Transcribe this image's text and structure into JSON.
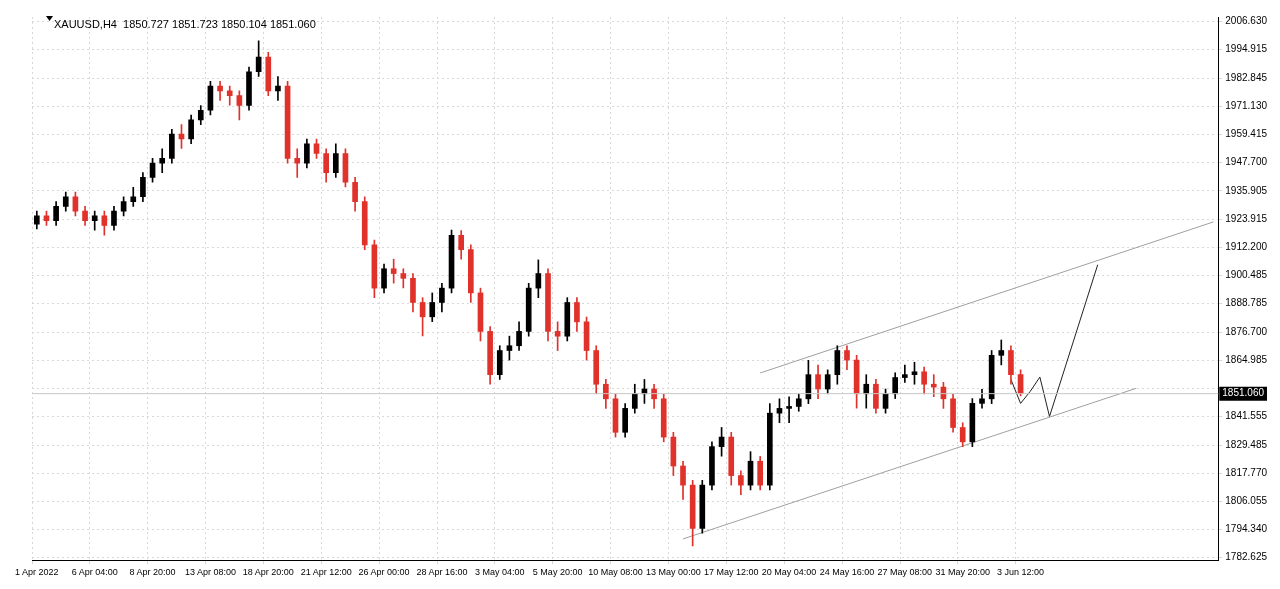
{
  "chart_data": {
    "type": "candlestick",
    "title": "XAUUSD,H4  1850.727 1851.723 1850.104 1851.060",
    "categories": [
      "1 Apr 2022",
      null,
      null,
      null,
      null,
      null,
      "6 Apr 04:00",
      null,
      null,
      null,
      null,
      null,
      "8 Apr 20:00",
      null,
      null,
      null,
      null,
      null,
      "13 Apr 08:00",
      null,
      null,
      null,
      null,
      null,
      "18 Apr 20:00",
      null,
      null,
      null,
      null,
      null,
      "21 Apr 12:00",
      null,
      null,
      null,
      null,
      null,
      "26 Apr 00:00",
      null,
      null,
      null,
      null,
      null,
      "28 Apr 16:00",
      null,
      null,
      null,
      null,
      null,
      "3 May 04:00",
      null,
      null,
      null,
      null,
      null,
      "5 May 20:00",
      null,
      null,
      null,
      null,
      null,
      "10 May 08:00",
      null,
      null,
      null,
      null,
      null,
      "13 May 00:00",
      null,
      null,
      null,
      null,
      null,
      "17 May 12:00",
      null,
      null,
      null,
      null,
      null,
      "20 May 04:00",
      null,
      null,
      null,
      null,
      null,
      "24 May 16:00",
      null,
      null,
      null,
      null,
      null,
      "27 May 08:00",
      null,
      null,
      null,
      null,
      null,
      "31 May 20:00",
      null,
      null,
      null,
      null,
      null,
      "3 Jun 12:00",
      null,
      null,
      null,
      null,
      null,
      null,
      null,
      null,
      null,
      null,
      null,
      null,
      null,
      null,
      null,
      null,
      null,
      null,
      null,
      null
    ],
    "ohlc": [
      [
        1922.0,
        1927.4,
        1920.0,
        1925.4
      ],
      [
        1925.4,
        1927.4,
        1921.4,
        1923.4
      ],
      [
        1923.4,
        1931.4,
        1921.4,
        1929.4
      ],
      [
        1929.4,
        1935.4,
        1927.4,
        1933.4
      ],
      [
        1933.4,
        1935.4,
        1925.4,
        1927.4
      ],
      [
        1927.4,
        1929.4,
        1921.4,
        1923.4
      ],
      [
        1923.4,
        1927.4,
        1919.4,
        1925.4
      ],
      [
        1925.4,
        1927.4,
        1917.4,
        1921.4
      ],
      [
        1921.4,
        1929.4,
        1919.4,
        1927.4
      ],
      [
        1927.4,
        1933.4,
        1925.4,
        1931.4
      ],
      [
        1931.4,
        1937.4,
        1929.4,
        1933.4
      ],
      [
        1933.4,
        1943.5,
        1931.4,
        1941.5
      ],
      [
        1941.5,
        1949.5,
        1939.5,
        1947.5
      ],
      [
        1947.5,
        1953.5,
        1943.5,
        1949.5
      ],
      [
        1949.5,
        1961.6,
        1947.5,
        1959.6
      ],
      [
        1959.6,
        1963.6,
        1953.6,
        1957.6
      ],
      [
        1957.6,
        1967.6,
        1955.6,
        1965.6
      ],
      [
        1965.6,
        1971.6,
        1963.6,
        1969.6
      ],
      [
        1969.6,
        1981.7,
        1967.6,
        1979.7
      ],
      [
        1979.7,
        1981.7,
        1973.7,
        1977.7
      ],
      [
        1977.7,
        1979.7,
        1971.7,
        1975.7
      ],
      [
        1975.7,
        1977.7,
        1965.6,
        1971.6
      ],
      [
        1971.6,
        1987.7,
        1969.6,
        1985.7
      ],
      [
        1985.7,
        1998.6,
        1983.7,
        1991.8
      ],
      [
        1991.8,
        1993.8,
        1975.7,
        1977.7
      ],
      [
        1977.7,
        1983.7,
        1973.7,
        1979.7
      ],
      [
        1979.7,
        1981.7,
        1947.5,
        1949.5
      ],
      [
        1949.5,
        1953.5,
        1941.5,
        1947.5
      ],
      [
        1947.5,
        1957.5,
        1945.5,
        1955.5
      ],
      [
        1955.5,
        1957.5,
        1949.5,
        1951.5
      ],
      [
        1951.5,
        1953.5,
        1939.5,
        1943.5
      ],
      [
        1943.5,
        1955.5,
        1941.5,
        1951.5
      ],
      [
        1951.5,
        1953.5,
        1937.5,
        1939.5
      ],
      [
        1939.5,
        1941.5,
        1927.4,
        1931.4
      ],
      [
        1931.4,
        1933.4,
        1911.3,
        1913.3
      ],
      [
        1913.3,
        1915.3,
        1891.2,
        1895.2
      ],
      [
        1895.2,
        1905.3,
        1893.2,
        1903.3
      ],
      [
        1903.3,
        1907.3,
        1897.3,
        1901.3
      ],
      [
        1901.3,
        1903.3,
        1895.3,
        1899.3
      ],
      [
        1899.3,
        1901.3,
        1885.2,
        1889.2
      ],
      [
        1889.2,
        1891.2,
        1875.2,
        1883.2
      ],
      [
        1883.2,
        1893.2,
        1881.2,
        1889.2
      ],
      [
        1889.2,
        1897.2,
        1885.2,
        1895.2
      ],
      [
        1895.2,
        1919.5,
        1893.2,
        1917.3
      ],
      [
        1917.3,
        1919.3,
        1907.3,
        1911.3
      ],
      [
        1911.3,
        1913.3,
        1889.2,
        1893.2
      ],
      [
        1893.2,
        1895.2,
        1873.1,
        1877.1
      ],
      [
        1877.1,
        1879.1,
        1855.0,
        1859.0
      ],
      [
        1859.0,
        1871.1,
        1857.0,
        1869.1
      ],
      [
        1869.1,
        1875.1,
        1865.1,
        1871.1
      ],
      [
        1871.1,
        1881.1,
        1869.1,
        1877.1
      ],
      [
        1877.1,
        1897.2,
        1875.1,
        1895.2
      ],
      [
        1895.2,
        1907.0,
        1891.2,
        1901.3
      ],
      [
        1901.3,
        1903.3,
        1873.1,
        1877.1
      ],
      [
        1877.1,
        1881.1,
        1869.1,
        1875.1
      ],
      [
        1875.1,
        1891.2,
        1873.1,
        1889.2
      ],
      [
        1889.2,
        1891.2,
        1877.1,
        1881.1
      ],
      [
        1881.1,
        1883.1,
        1865.1,
        1869.1
      ],
      [
        1869.1,
        1871.1,
        1851.0,
        1855.0
      ],
      [
        1855.0,
        1857.0,
        1844.9,
        1848.9
      ],
      [
        1848.9,
        1850.9,
        1832.9,
        1834.9
      ],
      [
        1834.9,
        1846.9,
        1832.9,
        1844.9
      ],
      [
        1844.9,
        1855.0,
        1842.9,
        1851.0
      ],
      [
        1851.0,
        1857.0,
        1847.0,
        1853.0
      ],
      [
        1853.0,
        1855.0,
        1844.9,
        1848.9
      ],
      [
        1848.9,
        1850.9,
        1830.9,
        1832.9
      ],
      [
        1832.9,
        1834.9,
        1816.8,
        1820.8
      ],
      [
        1820.8,
        1822.8,
        1806.8,
        1812.8
      ],
      [
        1812.8,
        1814.8,
        1787.4,
        1794.7
      ],
      [
        1794.7,
        1814.8,
        1792.7,
        1812.8
      ],
      [
        1812.8,
        1830.9,
        1810.8,
        1828.9
      ],
      [
        1828.9,
        1836.9,
        1824.9,
        1832.9
      ],
      [
        1832.9,
        1834.9,
        1812.8,
        1816.8
      ],
      [
        1816.8,
        1818.8,
        1808.8,
        1812.8
      ],
      [
        1812.8,
        1826.8,
        1810.8,
        1822.8
      ],
      [
        1822.8,
        1824.8,
        1810.8,
        1812.8
      ],
      [
        1812.8,
        1846.9,
        1810.8,
        1842.9
      ],
      [
        1842.9,
        1848.9,
        1838.9,
        1844.9
      ],
      [
        1844.9,
        1849.7,
        1838.9,
        1845.7
      ],
      [
        1845.7,
        1850.9,
        1843.7,
        1848.9
      ],
      [
        1848.9,
        1865.0,
        1846.9,
        1859.0
      ],
      [
        1859.0,
        1863.0,
        1849.0,
        1853.0
      ],
      [
        1853.0,
        1861.0,
        1851.0,
        1859.0
      ],
      [
        1859.0,
        1871.1,
        1855.0,
        1869.1
      ],
      [
        1869.1,
        1871.1,
        1861.1,
        1865.1
      ],
      [
        1865.1,
        1867.1,
        1845.0,
        1851.0
      ],
      [
        1851.0,
        1859.0,
        1845.0,
        1855.0
      ],
      [
        1855.0,
        1857.0,
        1842.9,
        1844.9
      ],
      [
        1844.9,
        1853.0,
        1842.9,
        1851.0
      ],
      [
        1851.0,
        1859.8,
        1849.0,
        1857.8
      ],
      [
        1857.8,
        1863.0,
        1855.8,
        1859.0
      ],
      [
        1859.0,
        1864.2,
        1855.0,
        1860.2
      ],
      [
        1860.2,
        1862.2,
        1851.0,
        1855.0
      ],
      [
        1855.0,
        1859.0,
        1849.8,
        1853.8
      ],
      [
        1853.8,
        1855.8,
        1844.9,
        1848.9
      ],
      [
        1848.9,
        1850.9,
        1834.9,
        1836.9
      ],
      [
        1836.9,
        1838.9,
        1828.9,
        1830.9
      ],
      [
        1830.9,
        1849.0,
        1828.9,
        1847.0
      ],
      [
        1847.0,
        1852.9,
        1845.0,
        1848.9
      ],
      [
        1848.9,
        1869.1,
        1846.9,
        1867.1
      ],
      [
        1867.1,
        1873.5,
        1863.1,
        1869.1
      ],
      [
        1869.1,
        1871.1,
        1855.0,
        1859.0
      ],
      [
        1859.0,
        1861.0,
        1850.1,
        1851.06
      ],
      null,
      null,
      null,
      null,
      null,
      null,
      null,
      null,
      null,
      null,
      null,
      null,
      null,
      null,
      null,
      null,
      null,
      null,
      null,
      null
    ],
    "colors": [
      "#000000",
      "#e0312b",
      "#000000",
      "#000000",
      "#e0312b",
      "#e0312b",
      "#000000",
      "#e0312b",
      "#000000",
      "#000000",
      "#000000",
      "#000000",
      "#000000",
      "#000000",
      "#000000",
      "#e0312b",
      "#000000",
      "#000000",
      "#000000",
      "#e0312b",
      "#e0312b",
      "#e0312b",
      "#000000",
      "#000000",
      "#e0312b",
      "#000000",
      "#e0312b",
      "#e0312b",
      "#000000",
      "#e0312b",
      "#e0312b",
      "#000000",
      "#e0312b",
      "#e0312b",
      "#e0312b",
      "#e0312b",
      "#000000",
      "#e0312b",
      "#e0312b",
      "#e0312b",
      "#e0312b",
      "#000000",
      "#000000",
      "#000000",
      "#e0312b",
      "#e0312b",
      "#e0312b",
      "#e0312b",
      "#000000",
      "#000000",
      "#000000",
      "#000000",
      "#000000",
      "#e0312b",
      "#e0312b",
      "#000000",
      "#e0312b",
      "#e0312b",
      "#e0312b",
      "#e0312b",
      "#e0312b",
      "#000000",
      "#000000",
      "#000000",
      "#e0312b",
      "#e0312b",
      "#e0312b",
      "#e0312b",
      "#e0312b",
      "#000000",
      "#000000",
      "#000000",
      "#e0312b",
      "#e0312b",
      "#000000",
      "#e0312b",
      "#000000",
      "#000000",
      "#000000",
      "#000000",
      "#000000",
      "#e0312b",
      "#000000",
      "#000000",
      "#e0312b",
      "#e0312b",
      "#000000",
      "#e0312b",
      "#000000",
      "#000000",
      "#000000",
      "#000000",
      "#e0312b",
      "#e0312b",
      "#e0312b",
      "#e0312b",
      "#e0312b",
      "#000000",
      "#000000",
      "#000000",
      "#000000",
      "#e0312b",
      "#e0312b",
      null,
      null,
      null,
      null,
      null,
      null,
      null,
      null,
      null,
      null,
      null,
      null,
      null,
      null,
      null,
      null,
      null,
      null,
      null,
      null
    ],
    "series": [
      {
        "type": "line",
        "color": "#a0a0a0",
        "values": [
          null,
          null,
          null,
          null,
          null,
          null,
          null,
          null,
          null,
          null,
          null,
          null,
          null,
          null,
          null,
          null,
          null,
          null,
          null,
          null,
          null,
          null,
          null,
          null,
          null,
          null,
          null,
          null,
          null,
          null,
          null,
          null,
          null,
          null,
          null,
          null,
          null,
          null,
          null,
          null,
          null,
          null,
          null,
          null,
          null,
          null,
          null,
          null,
          null,
          null,
          null,
          null,
          null,
          null,
          null,
          null,
          null,
          null,
          null,
          null,
          null,
          null,
          null,
          null,
          null,
          null,
          null,
          null,
          null,
          null,
          null,
          null,
          null,
          null,
          null,
          1859.7,
          null,
          null,
          null,
          null,
          null,
          null,
          null,
          null,
          null,
          null,
          null,
          null,
          null,
          null,
          null,
          null,
          null,
          null,
          null,
          null,
          null,
          null,
          null,
          null,
          null,
          null,
          null,
          null,
          null,
          null,
          null,
          null,
          null,
          null,
          null,
          null,
          null,
          null,
          null,
          null,
          null,
          null,
          null,
          null,
          null,
          null,
          1922.9
        ]
      },
      {
        "type": "line",
        "color": "#a0a0a0",
        "values": [
          null,
          null,
          null,
          null,
          null,
          null,
          null,
          null,
          null,
          null,
          null,
          null,
          null,
          null,
          null,
          null,
          null,
          null,
          null,
          null,
          null,
          null,
          null,
          null,
          null,
          null,
          null,
          null,
          null,
          null,
          null,
          null,
          null,
          null,
          null,
          null,
          null,
          null,
          null,
          null,
          null,
          null,
          null,
          null,
          null,
          null,
          null,
          null,
          null,
          null,
          null,
          null,
          null,
          null,
          null,
          null,
          null,
          null,
          null,
          null,
          null,
          null,
          null,
          null,
          null,
          null,
          null,
          1790.3,
          null,
          null,
          null,
          null,
          null,
          null,
          null,
          null,
          null,
          null,
          null,
          null,
          null,
          null,
          null,
          null,
          null,
          null,
          null,
          null,
          null,
          null,
          null,
          null,
          null,
          null,
          null,
          null,
          null,
          null,
          null,
          null,
          null,
          null,
          null,
          null,
          null,
          null,
          null,
          null,
          null,
          null,
          null,
          null,
          null,
          null,
          1853.3,
          null,
          null,
          null,
          null,
          null,
          null,
          null,
          null
        ]
      },
      {
        "type": "line",
        "color": "#222222",
        "values": [
          null,
          null,
          null,
          null,
          null,
          null,
          null,
          null,
          null,
          null,
          null,
          null,
          null,
          null,
          null,
          null,
          null,
          null,
          null,
          null,
          null,
          null,
          null,
          null,
          null,
          null,
          null,
          null,
          null,
          null,
          null,
          null,
          null,
          null,
          null,
          null,
          null,
          null,
          null,
          null,
          null,
          null,
          null,
          null,
          null,
          null,
          null,
          null,
          null,
          null,
          null,
          null,
          null,
          null,
          null,
          null,
          null,
          null,
          null,
          null,
          null,
          null,
          null,
          null,
          null,
          null,
          null,
          null,
          null,
          null,
          null,
          null,
          null,
          null,
          null,
          null,
          null,
          null,
          null,
          null,
          null,
          null,
          null,
          null,
          null,
          null,
          null,
          null,
          null,
          null,
          null,
          null,
          null,
          null,
          null,
          null,
          null,
          null,
          null,
          null,
          null,
          1857,
          1847,
          1852,
          1858,
          1841.5,
          null,
          null,
          null,
          null,
          1905,
          null,
          null,
          null,
          null,
          null,
          null,
          null,
          null,
          null,
          null,
          null,
          null
        ]
      }
    ],
    "ylim": [
      1781.4,
      2008.6
    ],
    "yticks": [
      {
        "value": 1782.625,
        "label": "1782.625"
      },
      {
        "value": 1794.34,
        "label": "1794.340"
      },
      {
        "value": 1806.055,
        "label": "1806.055"
      },
      {
        "value": 1817.77,
        "label": "1817.770"
      },
      {
        "value": 1829.485,
        "label": "1829.485"
      },
      {
        "value": 1841.555,
        "label": "1841.555"
      },
      {
        "value": 1853.27,
        "label": null
      },
      {
        "value": 1864.985,
        "label": "1864.985"
      },
      {
        "value": 1876.7,
        "label": "1876.700"
      },
      {
        "value": 1888.785,
        "label": "1888.785"
      },
      {
        "value": 1900.485,
        "label": "1900.485"
      },
      {
        "value": 1912.2,
        "label": "1912.200"
      },
      {
        "value": 1923.915,
        "label": "1923.915"
      },
      {
        "value": 1935.905,
        "label": "1935.905"
      },
      {
        "value": 1947.7,
        "label": "1947.700"
      },
      {
        "value": 1959.415,
        "label": "1959.415"
      },
      {
        "value": 1971.13,
        "label": "1971.130"
      },
      {
        "value": 1982.845,
        "label": "1982.845"
      },
      {
        "value": 1994.915,
        "label": "1994.915"
      },
      {
        "value": 2006.63,
        "label": "2006.630"
      }
    ],
    "grid": true,
    "ref_lines": [
      {
        "axis": "y",
        "value": 1851.06,
        "label": "1851.060",
        "color": "#c8c8c8"
      }
    ]
  }
}
